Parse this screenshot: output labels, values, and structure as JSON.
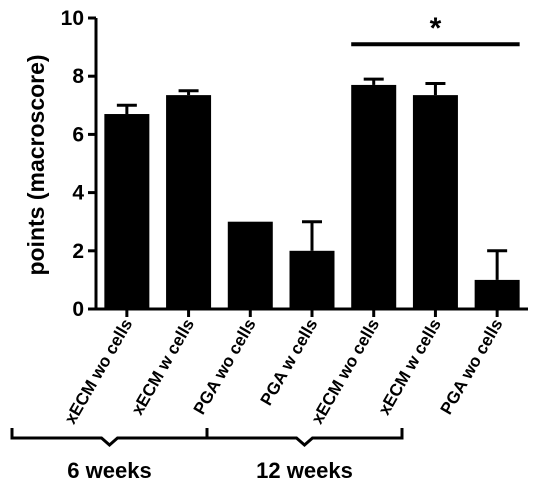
{
  "chart_data": {
    "type": "bar",
    "title": "",
    "xlabel": "",
    "ylabel": "points (macroscore)",
    "ylim": [
      0,
      10
    ],
    "yticks": [
      "0",
      "2",
      "4",
      "6",
      "8",
      "10"
    ],
    "categories": [
      "xECM wo cells",
      "xECM w cells",
      "PGA wo cells",
      "PGA w cells",
      "xECM wo cells",
      "xECM w cells",
      "PGA wo cells"
    ],
    "values": [
      6.7,
      7.35,
      3.0,
      2.0,
      7.7,
      7.35,
      1.0
    ],
    "error_upper": [
      0.3,
      0.15,
      0.0,
      1.0,
      0.2,
      0.4,
      1.0
    ],
    "groups": [
      {
        "label": "6 weeks",
        "categories": [
          0,
          1,
          2
        ]
      },
      {
        "label": "12 weeks",
        "categories": [
          3,
          4,
          5
        ]
      }
    ],
    "significance": {
      "label": "*",
      "from": 4,
      "to": 6
    },
    "bar_color": "#000000",
    "grid": false,
    "legend": "none"
  }
}
